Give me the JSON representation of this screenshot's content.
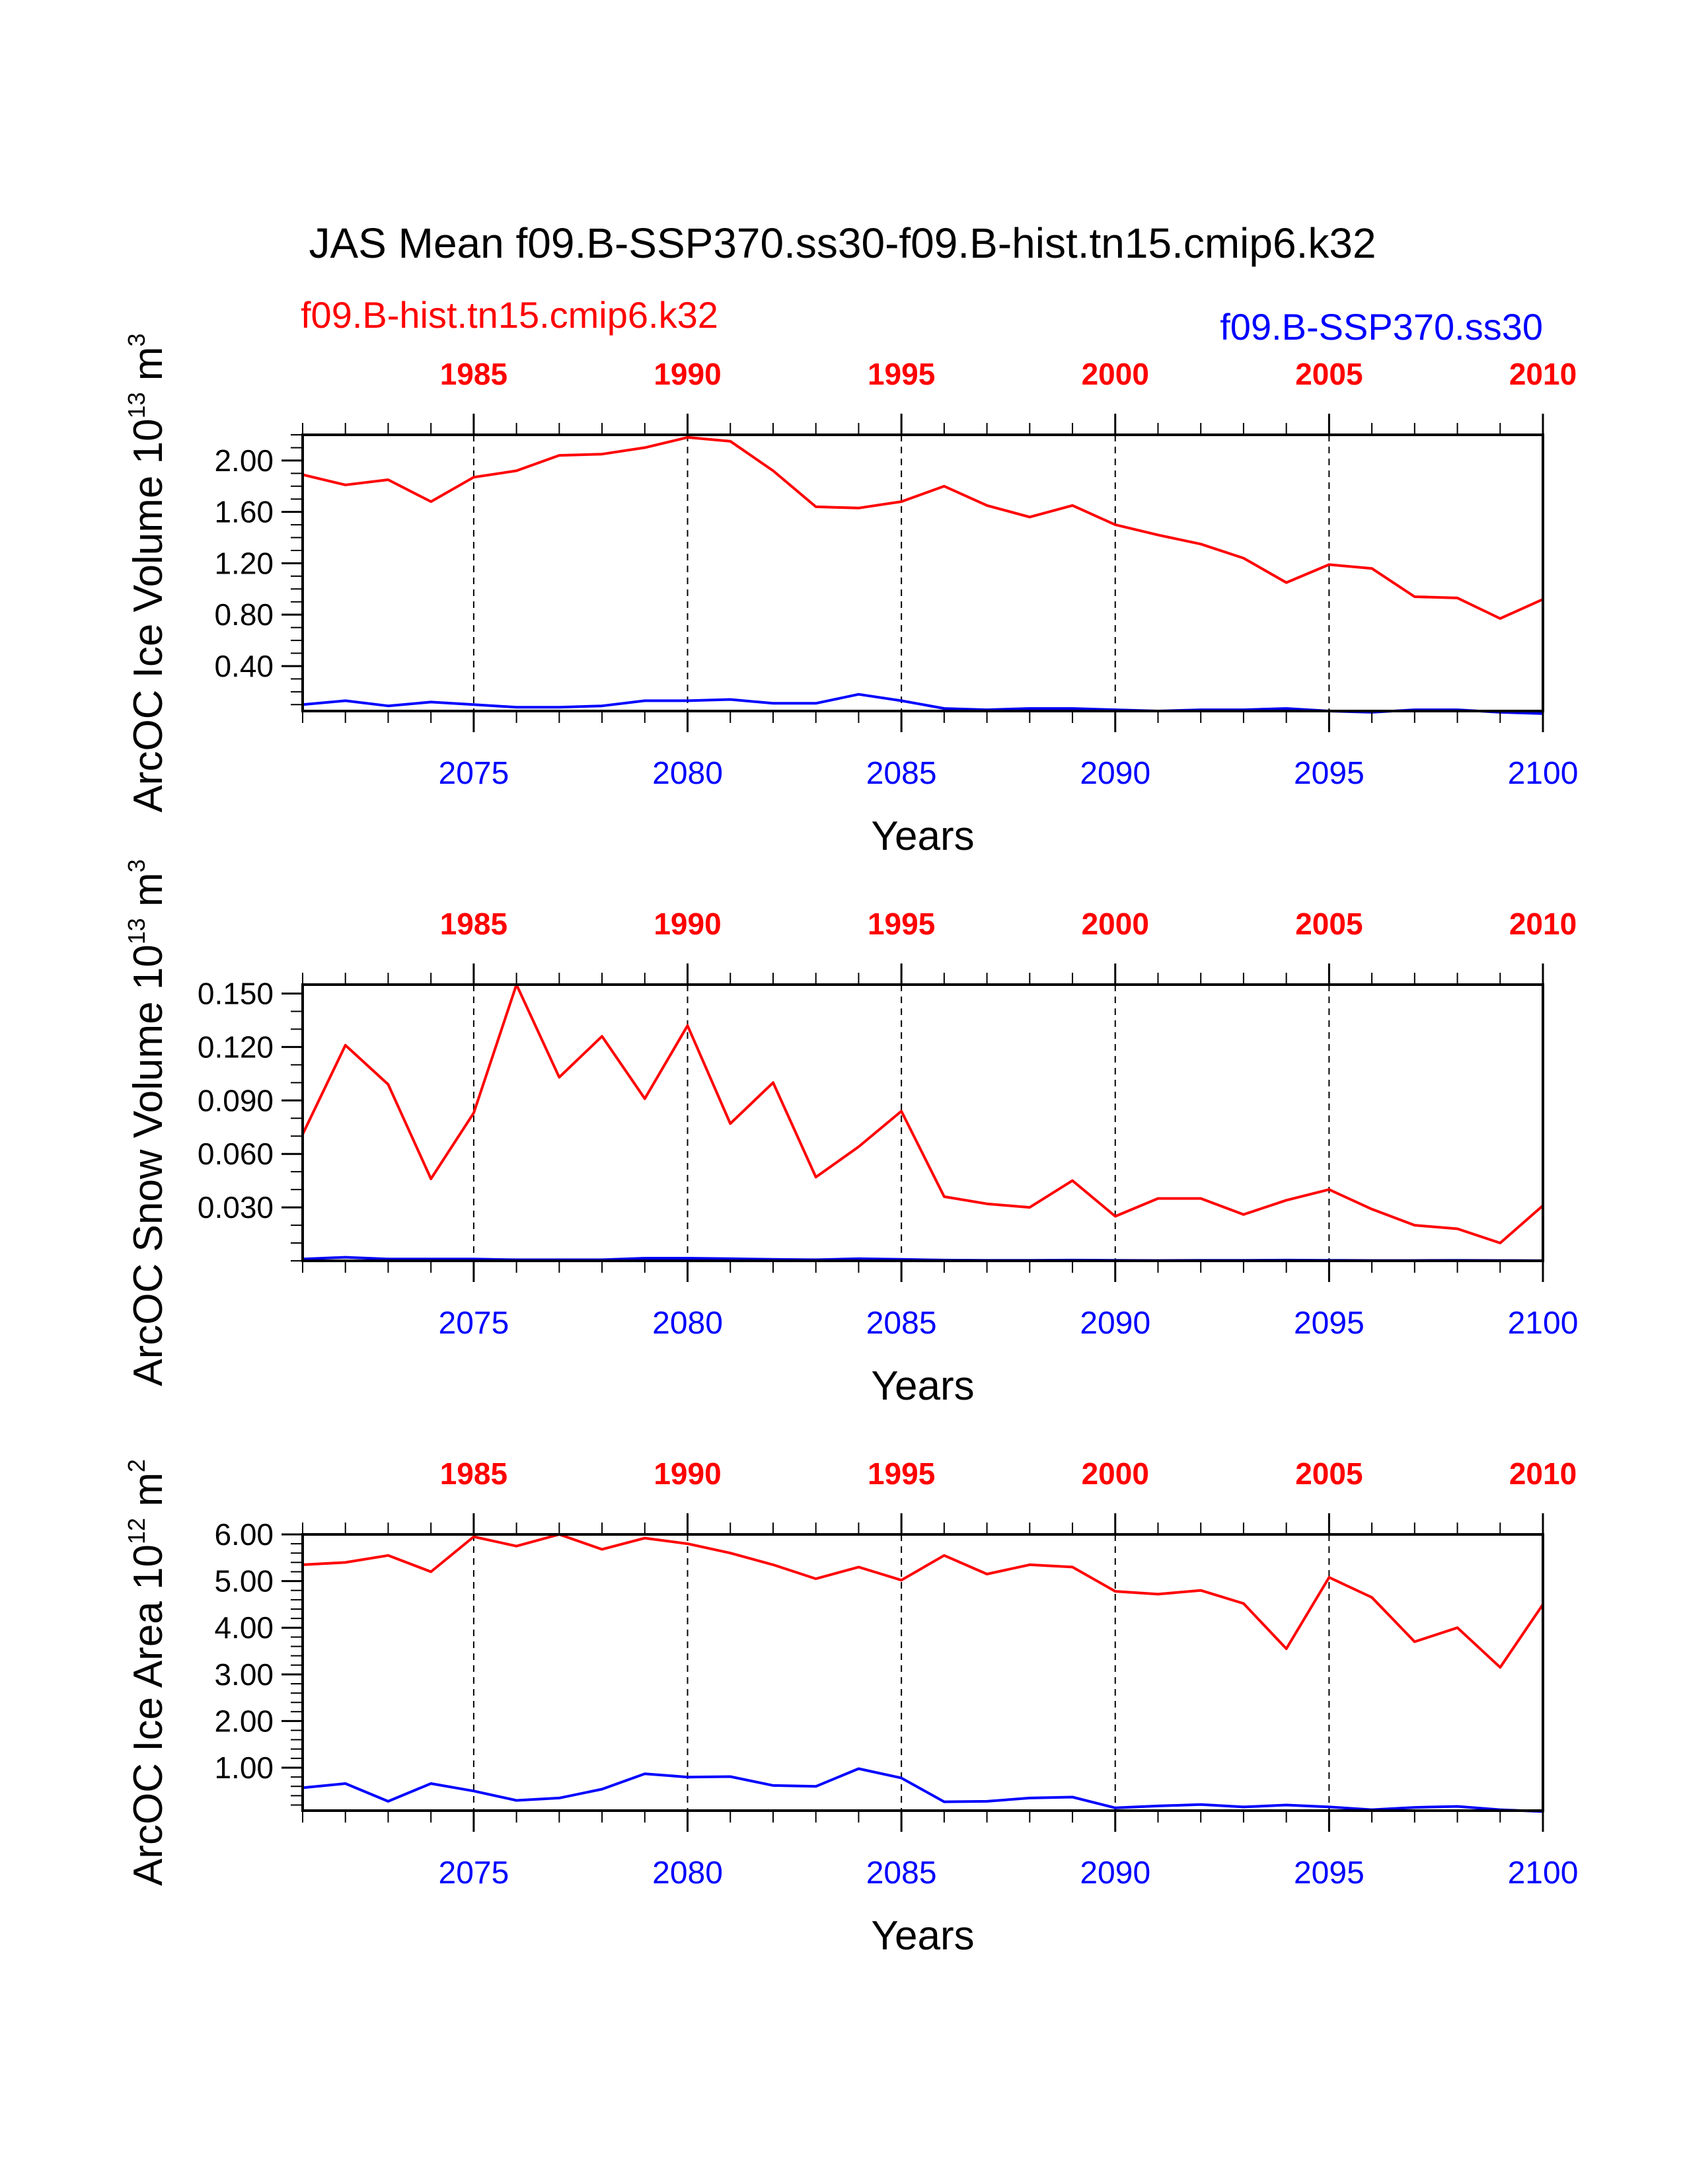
{
  "title": "JAS Mean f09.B-SSP370.ss30-f09.B-hist.tn15.cmip6.k32",
  "legend": {
    "hist_label": "f09.B-hist.tn15.cmip6.k32",
    "ssp_label": "f09.B-SSP370.ss30"
  },
  "colors": {
    "hist": "#ff0000",
    "ssp": "#0000ff",
    "axis": "#000000"
  },
  "chart_data": [
    {
      "type": "line",
      "ylabel": "ArcOC Ice Volume 10",
      "ylabel_exp": "13",
      "ylabel_unit": " m",
      "ylabel_unit_exp": "3",
      "xlabel": "Years",
      "top_ticks": [
        "1985",
        "1990",
        "1995",
        "2000",
        "2005",
        "2010"
      ],
      "bottom_ticks": [
        "2075",
        "2080",
        "2085",
        "2090",
        "2095",
        "2100"
      ],
      "y_tick_values": [
        0.4,
        0.8,
        1.2,
        1.6,
        2.0
      ],
      "y_tick_labels": [
        "0.40",
        "0.80",
        "1.20",
        "1.60",
        "2.00"
      ],
      "y_minor_step": 0.1,
      "ylim": [
        0.05,
        2.2
      ],
      "xlim": [
        2071,
        2100
      ],
      "x": [
        2071,
        2072,
        2073,
        2074,
        2075,
        2076,
        2077,
        2078,
        2079,
        2080,
        2081,
        2082,
        2083,
        2084,
        2085,
        2086,
        2087,
        2088,
        2089,
        2090,
        2091,
        2092,
        2093,
        2094,
        2095,
        2096,
        2097,
        2098,
        2099,
        2100
      ],
      "series": [
        {
          "name": "f09.B-hist.tn15.cmip6.k32",
          "color": "hist",
          "values": [
            1.89,
            1.81,
            1.85,
            1.68,
            1.87,
            1.92,
            2.04,
            2.05,
            2.1,
            2.18,
            2.15,
            1.92,
            1.64,
            1.63,
            1.68,
            1.8,
            1.65,
            1.56,
            1.65,
            1.5,
            1.42,
            1.35,
            1.24,
            1.05,
            1.19,
            1.16,
            0.94,
            0.93,
            0.77,
            0.92
          ]
        },
        {
          "name": "f09.B-SSP370.ss30",
          "color": "ssp",
          "values": [
            0.1,
            0.13,
            0.09,
            0.12,
            0.1,
            0.08,
            0.08,
            0.09,
            0.13,
            0.13,
            0.14,
            0.11,
            0.11,
            0.18,
            0.13,
            0.07,
            0.06,
            0.07,
            0.07,
            0.06,
            0.05,
            0.06,
            0.06,
            0.07,
            0.05,
            0.04,
            0.06,
            0.06,
            0.04,
            0.03
          ]
        }
      ]
    },
    {
      "type": "line",
      "ylabel": "ArcOC Snow Volume 10",
      "ylabel_exp": "13",
      "ylabel_unit": " m",
      "ylabel_unit_exp": "3",
      "xlabel": "Years",
      "top_ticks": [
        "1985",
        "1990",
        "1995",
        "2000",
        "2005",
        "2010"
      ],
      "bottom_ticks": [
        "2075",
        "2080",
        "2085",
        "2090",
        "2095",
        "2100"
      ],
      "y_tick_values": [
        0.03,
        0.06,
        0.09,
        0.12,
        0.15
      ],
      "y_tick_labels": [
        "0.030",
        "0.060",
        "0.090",
        "0.120",
        "0.150"
      ],
      "y_minor_step": 0.01,
      "ylim": [
        0.0,
        0.155
      ],
      "xlim": [
        2071,
        2100
      ],
      "x": [
        2071,
        2072,
        2073,
        2074,
        2075,
        2076,
        2077,
        2078,
        2079,
        2080,
        2081,
        2082,
        2083,
        2084,
        2085,
        2086,
        2087,
        2088,
        2089,
        2090,
        2091,
        2092,
        2093,
        2094,
        2095,
        2096,
        2097,
        2098,
        2099,
        2100
      ],
      "series": [
        {
          "name": "f09.B-hist.tn15.cmip6.k32",
          "color": "hist",
          "values": [
            0.071,
            0.121,
            0.099,
            0.046,
            0.083,
            0.155,
            0.103,
            0.126,
            0.091,
            0.132,
            0.077,
            0.1,
            0.047,
            0.064,
            0.084,
            0.036,
            0.032,
            0.03,
            0.045,
            0.025,
            0.035,
            0.035,
            0.026,
            0.034,
            0.04,
            0.029,
            0.02,
            0.018,
            0.01,
            0.031
          ]
        },
        {
          "name": "f09.B-SSP370.ss30",
          "color": "ssp",
          "values": [
            0.001,
            0.002,
            0.001,
            0.001,
            0.001,
            0.0006,
            0.0006,
            0.0006,
            0.0015,
            0.0015,
            0.0012,
            0.0008,
            0.0006,
            0.0012,
            0.0008,
            0.0004,
            0.0003,
            0.0003,
            0.0004,
            0.0003,
            0.0002,
            0.0003,
            0.0003,
            0.0004,
            0.0003,
            0.0002,
            0.0002,
            0.0003,
            0.0002,
            0.0001
          ]
        }
      ]
    },
    {
      "type": "line",
      "ylabel": "ArcOC Ice Area 10",
      "ylabel_exp": "12",
      "ylabel_unit": " m",
      "ylabel_unit_exp": "2",
      "xlabel": "Years",
      "top_ticks": [
        "1985",
        "1990",
        "1995",
        "2000",
        "2005",
        "2010"
      ],
      "bottom_ticks": [
        "2075",
        "2080",
        "2085",
        "2090",
        "2095",
        "2100"
      ],
      "y_tick_values": [
        1.0,
        2.0,
        3.0,
        4.0,
        5.0,
        6.0
      ],
      "y_tick_labels": [
        "1.00",
        "2.00",
        "3.00",
        "4.00",
        "5.00",
        "6.00"
      ],
      "y_minor_step": 0.2,
      "ylim": [
        0.08,
        6.0
      ],
      "xlim": [
        2071,
        2100
      ],
      "x": [
        2071,
        2072,
        2073,
        2074,
        2075,
        2076,
        2077,
        2078,
        2079,
        2080,
        2081,
        2082,
        2083,
        2084,
        2085,
        2086,
        2087,
        2088,
        2089,
        2090,
        2091,
        2092,
        2093,
        2094,
        2095,
        2096,
        2097,
        2098,
        2099,
        2100
      ],
      "series": [
        {
          "name": "f09.B-hist.tn15.cmip6.k32",
          "color": "hist",
          "values": [
            5.35,
            5.4,
            5.55,
            5.2,
            5.95,
            5.75,
            6.0,
            5.68,
            5.92,
            5.8,
            5.6,
            5.35,
            5.05,
            5.3,
            5.02,
            5.55,
            5.15,
            5.35,
            5.3,
            4.78,
            4.72,
            4.8,
            4.52,
            3.55,
            5.08,
            4.65,
            3.7,
            4.0,
            3.15,
            4.5
          ]
        },
        {
          "name": "f09.B-SSP370.ss30",
          "color": "ssp",
          "values": [
            0.57,
            0.66,
            0.28,
            0.66,
            0.5,
            0.3,
            0.35,
            0.54,
            0.87,
            0.8,
            0.81,
            0.62,
            0.6,
            0.98,
            0.78,
            0.27,
            0.28,
            0.35,
            0.37,
            0.14,
            0.18,
            0.21,
            0.16,
            0.2,
            0.16,
            0.1,
            0.15,
            0.17,
            0.1,
            0.06
          ]
        }
      ]
    }
  ]
}
